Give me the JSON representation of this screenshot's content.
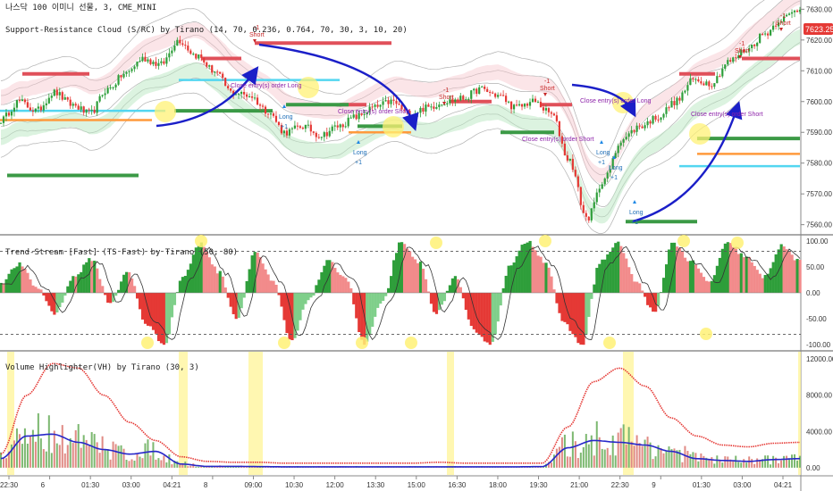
{
  "header": {
    "symbol_line": "나스닥 100 이미니 선물, 3, CME_MINI",
    "indicator_1": "Support-Resistance Cloud (S/RC) by Tirano (14, 70, 0.236, 0.764, 70, 30, 3, 10, 20)",
    "indicator_2": "Trend-Stream [Fast] (TS Fast) by Tirano (50, 80)",
    "indicator_3": "Volume Highlighter(VH) by Tirano (30, 3)"
  },
  "price_badge": "7623.25",
  "signal_labels": {
    "short": "Short",
    "long": "Long",
    "minus_one": "-1",
    "plus_one": "+1",
    "close_long": "Close entry(s) order Long",
    "close_short": "Close entry(s) order Short"
  },
  "colors": {
    "up": "#2e9e3a",
    "down": "#e53935",
    "cloud": "#9e9e9e",
    "resist": "#e0505a",
    "support": "#3b9a46",
    "cyan": "#53d6f0",
    "orange": "#ff9a3c",
    "arrow": "#1b1fc8",
    "highlight": "#fff176",
    "price_badge": "#e53935",
    "vol_red": "#e53935",
    "vol_blue": "#2727c9"
  },
  "chart_data": [
    {
      "name": "price",
      "type": "line",
      "y_ticks": [
        "7630.00",
        "7620.00",
        "7610.00",
        "7600.00",
        "7590.00",
        "7580.00",
        "7570.00",
        "7560.00"
      ],
      "ylim": [
        7557,
        7633
      ],
      "x_ticks": [
        "22:30",
        "6",
        "01:30",
        "03:00",
        "04:21",
        "8",
        "09:00",
        "10:30",
        "12:00",
        "13:30",
        "15:00",
        "16:30",
        "18:00",
        "19:30",
        "21:00",
        "22:30",
        "9",
        "01:30",
        "03:00",
        "04:21"
      ],
      "close_anchors": [
        7594,
        7600,
        7597,
        7603,
        7599,
        7596,
        7604,
        7609,
        7614,
        7612,
        7620,
        7615,
        7610,
        7603,
        7602,
        7597,
        7590,
        7592,
        7589,
        7592,
        7595,
        7598,
        7600,
        7596,
        7598,
        7600,
        7601,
        7604,
        7602,
        7598,
        7600,
        7596,
        7581,
        7562,
        7575,
        7588,
        7592,
        7595,
        7600,
        7607,
        7606,
        7613,
        7617,
        7622,
        7627,
        7630
      ],
      "last_price": 7623.25
    },
    {
      "name": "trend_stream",
      "type": "area",
      "y_ticks": [
        "100.00",
        "50.00",
        "0.00",
        "-50.00",
        "-100.00"
      ],
      "ylim": [
        -110,
        110
      ],
      "levels": [
        80,
        -80
      ],
      "anchors": [
        20,
        55,
        10,
        -40,
        30,
        65,
        -20,
        40,
        -60,
        -100,
        30,
        95,
        40,
        -50,
        80,
        20,
        -95,
        -10,
        60,
        30,
        -100,
        -20,
        95,
        60,
        -40,
        30,
        -70,
        -100,
        50,
        100,
        60,
        -60,
        -100,
        60,
        95,
        20,
        -40,
        98,
        60,
        20,
        95,
        70,
        30,
        90,
        60
      ]
    },
    {
      "name": "volume",
      "type": "bar",
      "y_ticks": [
        "12000.00",
        "8000.00",
        "4000.00",
        "0.00"
      ],
      "ylim": [
        -800,
        12800
      ],
      "red_anchors": [
        1500,
        8000,
        11500,
        11000,
        8000,
        5000,
        3000,
        1200,
        700,
        600,
        600,
        500,
        500,
        500,
        500,
        500,
        500,
        600,
        500,
        500,
        500,
        500,
        4500,
        9500,
        11000,
        9000,
        5500,
        3500,
        2500,
        2300,
        2700,
        2800
      ],
      "blue_anchors": [
        1000,
        3500,
        3700,
        2800,
        2000,
        1500,
        1800,
        400,
        150,
        150,
        120,
        100,
        100,
        100,
        100,
        100,
        100,
        100,
        100,
        100,
        100,
        120,
        2200,
        3000,
        2800,
        2500,
        1800,
        1000,
        800,
        700,
        900,
        1000
      ]
    }
  ]
}
